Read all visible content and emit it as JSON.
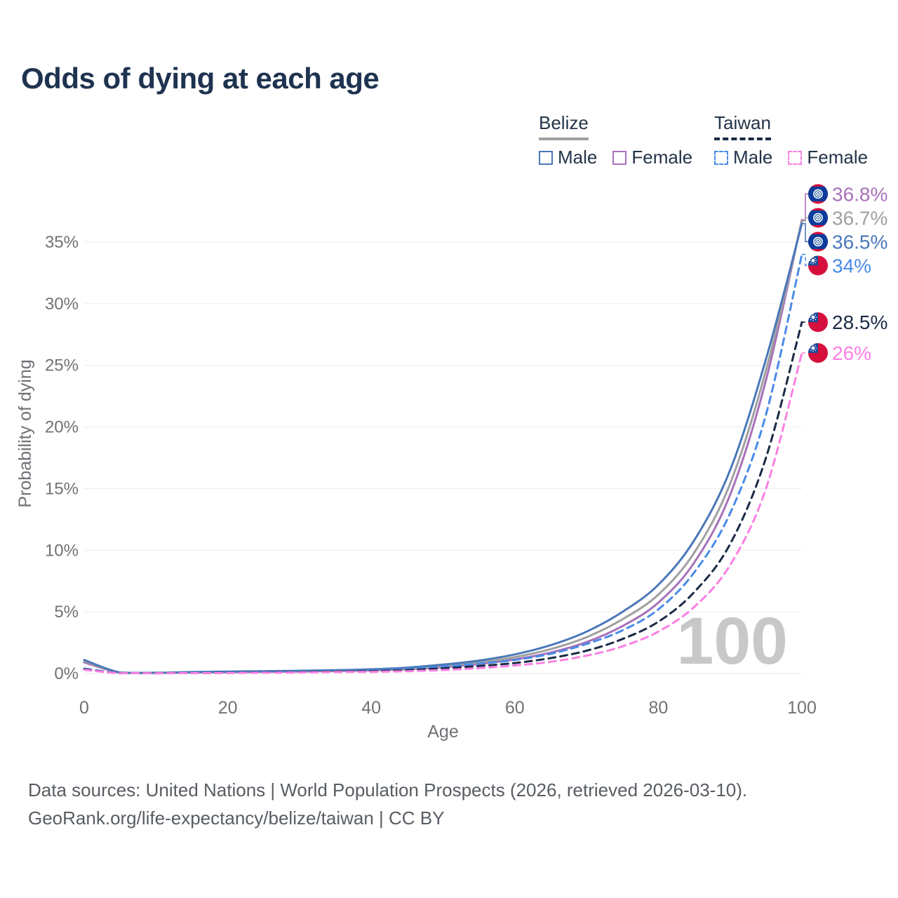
{
  "title": "Odds of dying at each age",
  "legend": {
    "groups": [
      {
        "country": "Belize",
        "line_style": "solid",
        "underline_color": "#a0a0a0",
        "items": [
          {
            "label": "Male",
            "color": "#4a77b9",
            "dash": false
          },
          {
            "label": "Female",
            "color": "#a871ba",
            "dash": false
          }
        ]
      },
      {
        "country": "Taiwan",
        "line_style": "dashed",
        "underline_color": "#1b2b45",
        "items": [
          {
            "label": "Male",
            "color": "#4a8be8",
            "dash": true
          },
          {
            "label": "Female",
            "color": "#fb80e3",
            "dash": true
          }
        ]
      }
    ]
  },
  "chart_data": {
    "type": "line",
    "title": "Odds of dying at each age",
    "xlabel": "Age",
    "ylabel": "Probability of dying",
    "xlim": [
      0,
      100
    ],
    "ylim": [
      0,
      38.5
    ],
    "x_ticks": [
      0,
      20,
      40,
      60,
      80,
      100
    ],
    "y_ticks": [
      "0%",
      "5%",
      "10%",
      "15%",
      "20%",
      "25%",
      "30%",
      "35%"
    ],
    "grid": true,
    "legend_position": "top-right",
    "watermark": "100",
    "ages": [
      0,
      5,
      10,
      15,
      20,
      25,
      30,
      35,
      40,
      45,
      50,
      55,
      60,
      65,
      70,
      75,
      80,
      85,
      90,
      95,
      100
    ],
    "series": [
      {
        "name": "Belize Female",
        "country": "Belize",
        "sex": "Female",
        "color": "#a871ba",
        "dash": false,
        "flag": "belize",
        "end_label": "36.8%",
        "values": [
          0.9,
          0.06,
          0.04,
          0.08,
          0.1,
          0.13,
          0.16,
          0.2,
          0.25,
          0.35,
          0.52,
          0.77,
          1.14,
          1.7,
          2.55,
          3.85,
          5.75,
          9.0,
          14.5,
          23.8,
          36.8
        ]
      },
      {
        "name": "Belize Total",
        "country": "Belize",
        "sex": "Total",
        "color": "#a0a0a0",
        "dash": false,
        "flag": "belize",
        "end_label": "36.7%",
        "values": [
          1.0,
          0.07,
          0.05,
          0.1,
          0.13,
          0.16,
          0.19,
          0.23,
          0.29,
          0.41,
          0.61,
          0.9,
          1.33,
          1.98,
          2.95,
          4.4,
          6.4,
          9.8,
          15.4,
          24.6,
          36.7
        ]
      },
      {
        "name": "Belize Male",
        "country": "Belize",
        "sex": "Male",
        "color": "#4a77b9",
        "dash": false,
        "flag": "belize",
        "end_label": "36.5%",
        "values": [
          1.1,
          0.08,
          0.06,
          0.12,
          0.16,
          0.19,
          0.22,
          0.27,
          0.34,
          0.48,
          0.72,
          1.05,
          1.55,
          2.3,
          3.4,
          5.0,
          7.2,
          10.8,
          16.5,
          25.5,
          36.5
        ]
      },
      {
        "name": "Taiwan Male",
        "country": "Taiwan",
        "sex": "Male",
        "color": "#4a8be8",
        "dash": true,
        "flag": "taiwan",
        "end_label": "34%",
        "values": [
          0.4,
          0.03,
          0.02,
          0.04,
          0.07,
          0.1,
          0.14,
          0.2,
          0.25,
          0.38,
          0.55,
          0.8,
          1.1,
          1.6,
          2.4,
          3.5,
          5.2,
          8.2,
          13.0,
          21.0,
          34.0
        ]
      },
      {
        "name": "Taiwan Total",
        "country": "Taiwan",
        "sex": "Total",
        "color": "#1b2b45",
        "dash": true,
        "flag": "taiwan",
        "end_label": "28.5%",
        "values": [
          0.35,
          0.02,
          0.02,
          0.03,
          0.05,
          0.08,
          0.11,
          0.16,
          0.19,
          0.28,
          0.42,
          0.61,
          0.85,
          1.25,
          1.85,
          2.8,
          4.2,
          6.6,
          10.5,
          17.5,
          28.5
        ]
      },
      {
        "name": "Taiwan Female",
        "country": "Taiwan",
        "sex": "Female",
        "color": "#fb80e3",
        "dash": true,
        "flag": "taiwan",
        "end_label": "26%",
        "values": [
          0.3,
          0.02,
          0.01,
          0.03,
          0.04,
          0.06,
          0.08,
          0.12,
          0.13,
          0.19,
          0.28,
          0.43,
          0.65,
          0.95,
          1.45,
          2.2,
          3.4,
          5.4,
          8.8,
          15.0,
          26.0
        ]
      }
    ],
    "flag_colors": {
      "belize": {
        "blue": "#0a3d9c",
        "red": "#d5103c",
        "white": "#ffffff",
        "ring": "#2a5f9e"
      },
      "taiwan": {
        "red": "#d5103c",
        "blue": "#1a4b9c",
        "white": "#ffffff"
      }
    }
  },
  "footer": {
    "line1": "Data sources: United Nations | World Population Prospects (2026, retrieved 2026-03-10).",
    "line2": "GeoRank.org/life-expectancy/belize/taiwan | CC BY"
  }
}
